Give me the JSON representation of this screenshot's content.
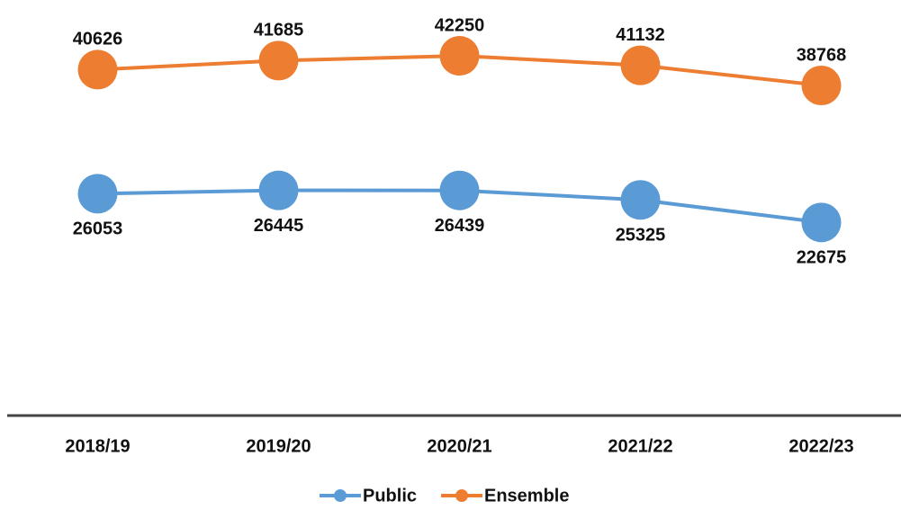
{
  "chart_data": {
    "type": "line",
    "categories": [
      "2018/19",
      "2019/20",
      "2020/21",
      "2021/22",
      "2022/23"
    ],
    "series": [
      {
        "name": "Public",
        "color": "#5b9bd5",
        "values": [
          26053,
          26445,
          26439,
          25325,
          22675
        ]
      },
      {
        "name": "Ensemble",
        "color": "#ed7d31",
        "values": [
          40626,
          41685,
          42250,
          41132,
          38768
        ]
      }
    ],
    "ylim": [
      0,
      45000
    ]
  }
}
